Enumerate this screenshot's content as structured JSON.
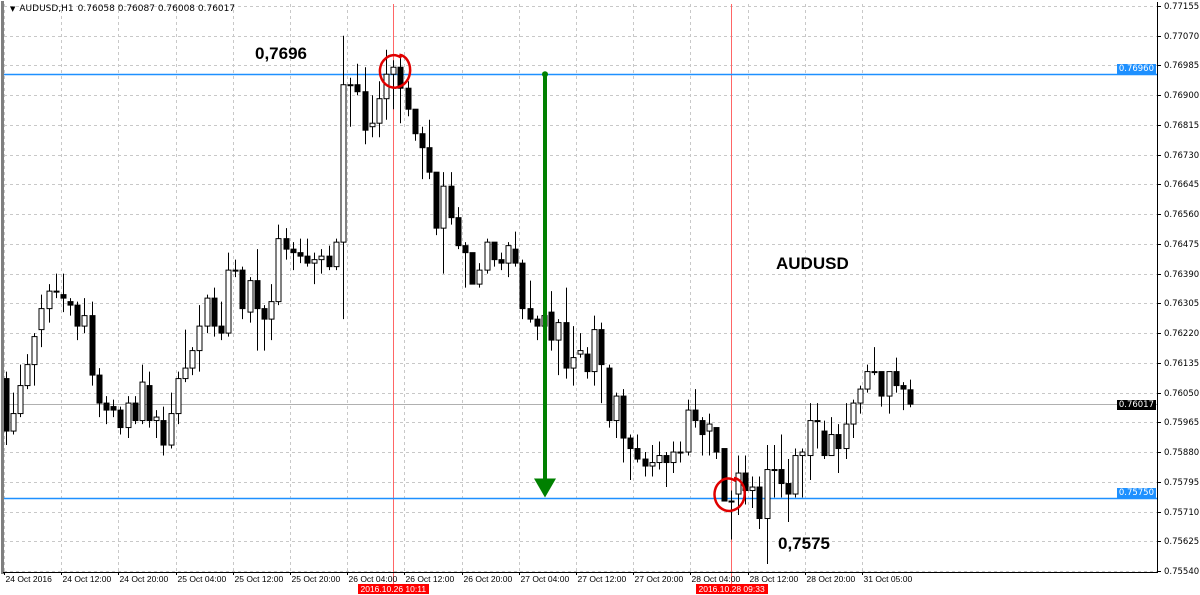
{
  "header": {
    "symbol": "AUDUSD,H1",
    "ohlc": "0.76058 0.76087 0.76008 0.76017"
  },
  "annotations": {
    "top_price": "0,7696",
    "symbol_label": "AUDUSD",
    "bottom_price": "0,7575"
  },
  "colors": {
    "horizontal_line": "#1e90ff",
    "vertical_line": "#ff6666",
    "arrow": "#008000",
    "circle": "#e00000",
    "bull": "#ffffff",
    "bear": "#000000"
  },
  "chart_data": {
    "type": "candlestick",
    "timeframe": "H1",
    "ylim": [
      0.7554,
      0.77155
    ],
    "price_ticks": [
      "0.77155",
      "0.77070",
      "0.76985",
      "0.76900",
      "0.76815",
      "0.76730",
      "0.76645",
      "0.76560",
      "0.76475",
      "0.76390",
      "0.76305",
      "0.76220",
      "0.76135",
      "0.76050",
      "0.75965",
      "0.75880",
      "0.75795",
      "0.75710",
      "0.75625",
      "0.75540"
    ],
    "time_ticks": [
      "24 Oct 2016",
      "24 Oct 12:00",
      "24 Oct 20:00",
      "25 Oct 04:00",
      "25 Oct 12:00",
      "25 Oct 20:00",
      "26 Oct 04:00",
      "26 Oct 12:00",
      "26 Oct 20:00",
      "27 Oct 04:00",
      "27 Oct 12:00",
      "27 Oct 20:00",
      "28 Oct 04:00",
      "28 Oct 12:00",
      "28 Oct 20:00",
      "31 Oct 05:00"
    ],
    "horizontal_lines": [
      {
        "price": 0.7696,
        "label": "0.76960"
      },
      {
        "price": 0.7575,
        "label": "0.75750"
      }
    ],
    "current_price": {
      "price": 0.76017,
      "label": "0.76017"
    },
    "vertical_lines": [
      {
        "bar": 54,
        "label": "2016.10.26 10:11"
      },
      {
        "bar": 101,
        "label": "2016.10.28 09:33"
      }
    ],
    "arrow": {
      "bar": 75,
      "from": 0.7696,
      "to": 0.7575
    },
    "grid": true,
    "ohlc": [
      [
        0.7609,
        0.7611,
        0.759,
        0.7594
      ],
      [
        0.7594,
        0.7605,
        0.7593,
        0.7599
      ],
      [
        0.7599,
        0.7613,
        0.7598,
        0.7607
      ],
      [
        0.7607,
        0.7616,
        0.7606,
        0.7613
      ],
      [
        0.7613,
        0.7622,
        0.7607,
        0.7621
      ],
      [
        0.7623,
        0.7633,
        0.7618,
        0.7629
      ],
      [
        0.7629,
        0.7636,
        0.7625,
        0.7634
      ],
      [
        0.7634,
        0.7639,
        0.7632,
        0.7634
      ],
      [
        0.7633,
        0.7639,
        0.7628,
        0.7632
      ],
      [
        0.7631,
        0.7632,
        0.7627,
        0.763
      ],
      [
        0.763,
        0.7631,
        0.762,
        0.7624
      ],
      [
        0.7624,
        0.7632,
        0.7622,
        0.7627
      ],
      [
        0.7627,
        0.7631,
        0.7607,
        0.761
      ],
      [
        0.761,
        0.7612,
        0.7598,
        0.7602
      ],
      [
        0.7602,
        0.7604,
        0.7596,
        0.76
      ],
      [
        0.7601,
        0.7603,
        0.7598,
        0.76
      ],
      [
        0.76,
        0.7601,
        0.7593,
        0.7595
      ],
      [
        0.7595,
        0.7604,
        0.7592,
        0.7602
      ],
      [
        0.7602,
        0.7604,
        0.7596,
        0.7597
      ],
      [
        0.7597,
        0.7613,
        0.7596,
        0.7608
      ],
      [
        0.7607,
        0.7611,
        0.7595,
        0.7597
      ],
      [
        0.7597,
        0.76,
        0.7592,
        0.7598
      ],
      [
        0.7597,
        0.7601,
        0.7587,
        0.759
      ],
      [
        0.759,
        0.7605,
        0.7589,
        0.7599
      ],
      [
        0.7599,
        0.7611,
        0.7596,
        0.7609
      ],
      [
        0.7609,
        0.7623,
        0.7608,
        0.7612
      ],
      [
        0.7612,
        0.7618,
        0.761,
        0.7617
      ],
      [
        0.7617,
        0.763,
        0.7611,
        0.7624
      ],
      [
        0.7624,
        0.7633,
        0.7622,
        0.7632
      ],
      [
        0.7632,
        0.7635,
        0.7621,
        0.7624
      ],
      [
        0.7624,
        0.7631,
        0.762,
        0.7622
      ],
      [
        0.7622,
        0.7645,
        0.7621,
        0.764
      ],
      [
        0.764,
        0.7643,
        0.7638,
        0.764
      ],
      [
        0.764,
        0.7641,
        0.7626,
        0.7629
      ],
      [
        0.7628,
        0.7638,
        0.7625,
        0.7637
      ],
      [
        0.7637,
        0.7646,
        0.7617,
        0.7629
      ],
      [
        0.7629,
        0.763,
        0.7617,
        0.7626
      ],
      [
        0.7626,
        0.7636,
        0.762,
        0.7631
      ],
      [
        0.7631,
        0.7653,
        0.763,
        0.7649
      ],
      [
        0.7649,
        0.7652,
        0.7643,
        0.7646
      ],
      [
        0.7646,
        0.7648,
        0.764,
        0.7645
      ],
      [
        0.7645,
        0.7649,
        0.7642,
        0.7644
      ],
      [
        0.7644,
        0.7649,
        0.7641,
        0.7642
      ],
      [
        0.7642,
        0.7645,
        0.7636,
        0.7643
      ],
      [
        0.7643,
        0.7646,
        0.7639,
        0.7644
      ],
      [
        0.7644,
        0.7647,
        0.764,
        0.7641
      ],
      [
        0.7641,
        0.7649,
        0.764,
        0.7648
      ],
      [
        0.7648,
        0.7707,
        0.7626,
        0.7693
      ],
      [
        0.7693,
        0.7695,
        0.7681,
        0.7693
      ],
      [
        0.7693,
        0.7699,
        0.769,
        0.7691
      ],
      [
        0.7691,
        0.7698,
        0.7676,
        0.768
      ],
      [
        0.7681,
        0.769,
        0.7678,
        0.7682
      ],
      [
        0.7682,
        0.7694,
        0.7678,
        0.7689
      ],
      [
        0.7689,
        0.7703,
        0.7683,
        0.7696
      ],
      [
        0.7696,
        0.77,
        0.7686,
        0.7698
      ],
      [
        0.7698,
        0.7701,
        0.7682,
        0.7692
      ],
      [
        0.7692,
        0.7694,
        0.7684,
        0.7686
      ],
      [
        0.7686,
        0.7686,
        0.7677,
        0.7679
      ],
      [
        0.7679,
        0.7681,
        0.7666,
        0.7675
      ],
      [
        0.7675,
        0.7683,
        0.7666,
        0.7668
      ],
      [
        0.7668,
        0.7668,
        0.765,
        0.7652
      ],
      [
        0.7652,
        0.7668,
        0.7639,
        0.7664
      ],
      [
        0.7664,
        0.7668,
        0.7653,
        0.7655
      ],
      [
        0.7655,
        0.7658,
        0.7646,
        0.7647
      ],
      [
        0.7647,
        0.7648,
        0.7635,
        0.7645
      ],
      [
        0.7645,
        0.7645,
        0.7636,
        0.7636
      ],
      [
        0.7636,
        0.7642,
        0.7635,
        0.764
      ],
      [
        0.764,
        0.7649,
        0.7639,
        0.7648
      ],
      [
        0.7648,
        0.7648,
        0.7641,
        0.7643
      ],
      [
        0.7643,
        0.7645,
        0.764,
        0.7642
      ],
      [
        0.7642,
        0.7648,
        0.7638,
        0.7647
      ],
      [
        0.7646,
        0.7651,
        0.7641,
        0.7642
      ],
      [
        0.7642,
        0.7643,
        0.7626,
        0.7629
      ],
      [
        0.7629,
        0.7637,
        0.7625,
        0.7626
      ],
      [
        0.7626,
        0.7627,
        0.762,
        0.7624
      ],
      [
        0.7624,
        0.763,
        0.7622,
        0.7627
      ],
      [
        0.7628,
        0.7634,
        0.7617,
        0.762
      ],
      [
        0.762,
        0.7626,
        0.761,
        0.7625
      ],
      [
        0.7625,
        0.7635,
        0.7609,
        0.7612
      ],
      [
        0.7612,
        0.7624,
        0.7607,
        0.7615
      ],
      [
        0.7616,
        0.7622,
        0.7615,
        0.7617
      ],
      [
        0.7616,
        0.7618,
        0.7609,
        0.7611
      ],
      [
        0.7611,
        0.7627,
        0.7607,
        0.7623
      ],
      [
        0.7623,
        0.7625,
        0.7602,
        0.7613
      ],
      [
        0.7612,
        0.7613,
        0.7595,
        0.7597
      ],
      [
        0.7597,
        0.7605,
        0.7592,
        0.7604
      ],
      [
        0.7604,
        0.7606,
        0.7585,
        0.7592
      ],
      [
        0.7592,
        0.7593,
        0.758,
        0.7589
      ],
      [
        0.7589,
        0.7593,
        0.7585,
        0.7586
      ],
      [
        0.7586,
        0.7588,
        0.7581,
        0.7584
      ],
      [
        0.7584,
        0.759,
        0.7581,
        0.7585
      ],
      [
        0.7585,
        0.7591,
        0.7583,
        0.7587
      ],
      [
        0.7587,
        0.7588,
        0.7578,
        0.7585
      ],
      [
        0.7585,
        0.7591,
        0.7582,
        0.7588
      ],
      [
        0.7588,
        0.7591,
        0.7585,
        0.7588
      ],
      [
        0.7588,
        0.7603,
        0.7587,
        0.76
      ],
      [
        0.76,
        0.7606,
        0.7595,
        0.7597
      ],
      [
        0.7597,
        0.7598,
        0.7587,
        0.7593
      ],
      [
        0.7594,
        0.7599,
        0.7587,
        0.7596
      ],
      [
        0.7595,
        0.7595,
        0.7586,
        0.7588
      ],
      [
        0.7589,
        0.7589,
        0.7574,
        0.7574
      ],
      [
        0.7574,
        0.7577,
        0.7563,
        0.7574
      ],
      [
        0.7576,
        0.7587,
        0.757,
        0.7582
      ],
      [
        0.7582,
        0.7587,
        0.7573,
        0.7577
      ],
      [
        0.7577,
        0.7581,
        0.7572,
        0.7578
      ],
      [
        0.7578,
        0.7581,
        0.7566,
        0.7569
      ],
      [
        0.7569,
        0.759,
        0.7556,
        0.7583
      ],
      [
        0.7583,
        0.759,
        0.7575,
        0.7583
      ],
      [
        0.7583,
        0.7593,
        0.7575,
        0.7579
      ],
      [
        0.7579,
        0.7586,
        0.7568,
        0.7576
      ],
      [
        0.7576,
        0.7589,
        0.7575,
        0.7587
      ],
      [
        0.7587,
        0.7589,
        0.7575,
        0.7588
      ],
      [
        0.7587,
        0.7602,
        0.758,
        0.7597
      ],
      [
        0.7597,
        0.7602,
        0.7589,
        0.7597
      ],
      [
        0.7594,
        0.7597,
        0.7586,
        0.7587
      ],
      [
        0.7587,
        0.7598,
        0.7587,
        0.7593
      ],
      [
        0.7593,
        0.7596,
        0.7582,
        0.7589
      ],
      [
        0.7589,
        0.7602,
        0.7586,
        0.7596
      ],
      [
        0.7596,
        0.7603,
        0.7592,
        0.7602
      ],
      [
        0.7602,
        0.7607,
        0.7599,
        0.7606
      ],
      [
        0.7606,
        0.7613,
        0.7605,
        0.7611
      ],
      [
        0.7611,
        0.7618,
        0.761,
        0.7611
      ],
      [
        0.7611,
        0.7611,
        0.7601,
        0.7604
      ],
      [
        0.7604,
        0.7611,
        0.7599,
        0.7611
      ],
      [
        0.7611,
        0.7615,
        0.7605,
        0.7607
      ],
      [
        0.7607,
        0.7608,
        0.76,
        0.7606
      ],
      [
        0.76058,
        0.76087,
        0.76008,
        0.76017
      ]
    ]
  }
}
